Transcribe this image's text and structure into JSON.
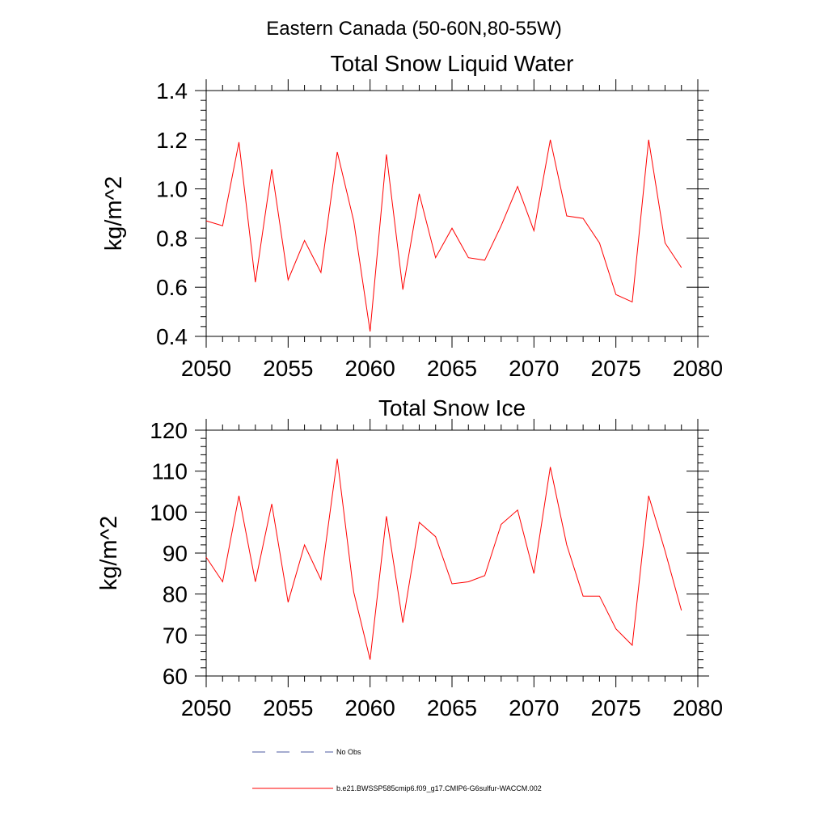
{
  "figure": {
    "title": "Eastern Canada (50-60N,80-55W)"
  },
  "chart_data": [
    {
      "type": "line",
      "title": "Total Snow Liquid Water",
      "xlabel": "",
      "ylabel": "kg/m^2",
      "xlim": [
        2050,
        2080
      ],
      "ylim": [
        0.4,
        1.4
      ],
      "x_ticks": [
        "2050",
        "2055",
        "2060",
        "2065",
        "2070",
        "2075",
        "2080"
      ],
      "y_ticks": [
        "0.4",
        "0.6",
        "0.8",
        "1.0",
        "1.2",
        "1.4"
      ],
      "grid": false,
      "x": [
        2050,
        2051,
        2052,
        2053,
        2054,
        2055,
        2056,
        2057,
        2058,
        2059,
        2060,
        2061,
        2062,
        2063,
        2064,
        2065,
        2066,
        2067,
        2068,
        2069,
        2070,
        2071,
        2072,
        2073,
        2074,
        2075,
        2076,
        2077,
        2078,
        2079
      ],
      "series": [
        {
          "name": "b.e21.BWSSP585cmip6.f09_g17.CMIP6-G6sulfur-WACCM.002",
          "color": "#ff0000",
          "values": [
            0.87,
            0.85,
            1.19,
            0.62,
            1.08,
            0.63,
            0.79,
            0.66,
            1.15,
            0.87,
            0.42,
            1.14,
            0.59,
            0.98,
            0.72,
            0.84,
            0.72,
            0.71,
            0.85,
            1.01,
            0.83,
            1.2,
            0.89,
            0.88,
            0.78,
            0.57,
            0.54,
            1.2,
            0.78,
            0.68
          ]
        }
      ]
    },
    {
      "type": "line",
      "title": "Total Snow Ice",
      "xlabel": "",
      "ylabel": "kg/m^2",
      "xlim": [
        2050,
        2080
      ],
      "ylim": [
        60,
        120
      ],
      "x_ticks": [
        "2050",
        "2055",
        "2060",
        "2065",
        "2070",
        "2075",
        "2080"
      ],
      "y_ticks": [
        "60",
        "70",
        "80",
        "90",
        "100",
        "110",
        "120"
      ],
      "grid": false,
      "x": [
        2050,
        2051,
        2052,
        2053,
        2054,
        2055,
        2056,
        2057,
        2058,
        2059,
        2060,
        2061,
        2062,
        2063,
        2064,
        2065,
        2066,
        2067,
        2068,
        2069,
        2070,
        2071,
        2072,
        2073,
        2074,
        2075,
        2076,
        2077,
        2078,
        2079
      ],
      "series": [
        {
          "name": "b.e21.BWSSP585cmip6.f09_g17.CMIP6-G6sulfur-WACCM.002",
          "color": "#ff0000",
          "values": [
            89,
            83,
            104,
            83,
            102,
            78,
            92,
            83.5,
            113,
            80.5,
            64,
            99,
            73,
            97.5,
            94,
            82.5,
            83,
            84.5,
            97,
            100.5,
            85,
            111,
            92,
            79.5,
            79.5,
            71.5,
            67.5,
            104,
            90.5,
            76
          ]
        }
      ]
    }
  ],
  "legend": {
    "items": [
      {
        "label": "No Obs",
        "color": "#4b5aa0",
        "dash": "dashed"
      },
      {
        "label": "b.e21.BWSSP585cmip6.f09_g17.CMIP6-G6sulfur-WACCM.002",
        "color": "#ff0000",
        "dash": "solid"
      }
    ]
  }
}
